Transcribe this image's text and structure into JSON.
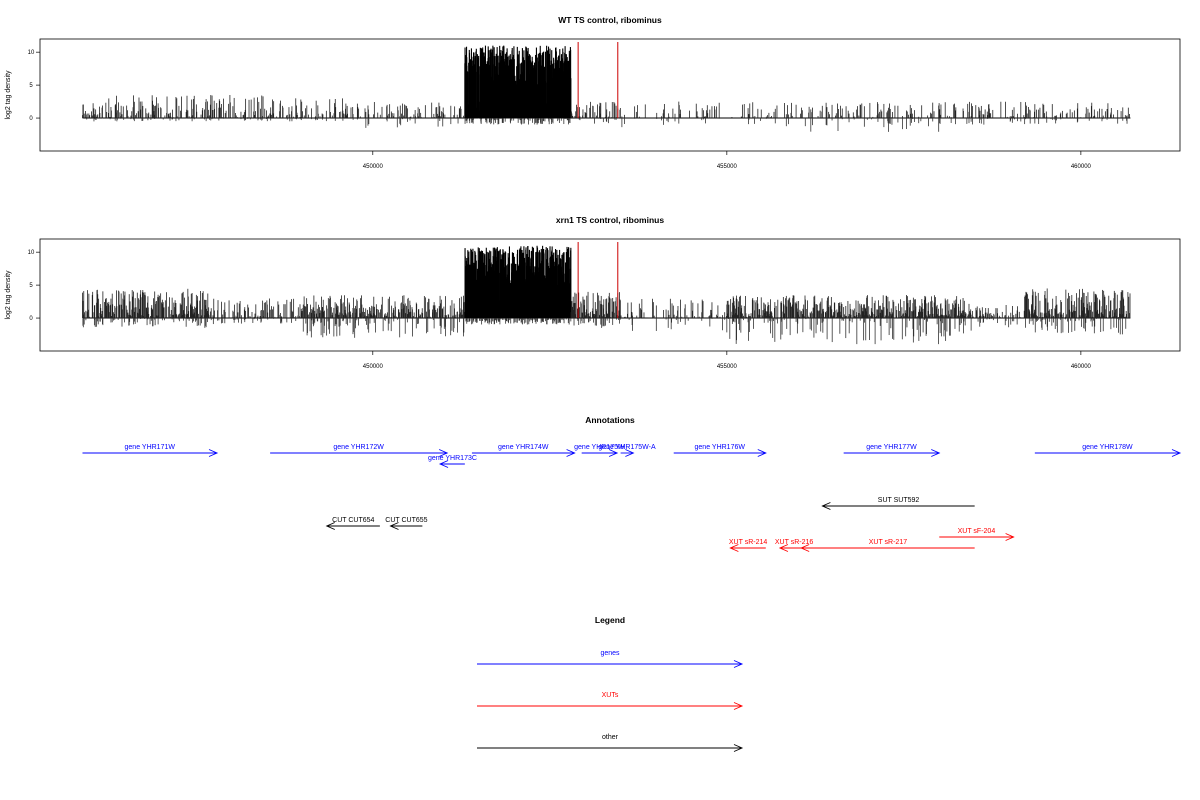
{
  "chart_data": [
    {
      "type": "bar",
      "title": "WT TS control, ribominus",
      "ylabel": "log2 tag density",
      "xlabel": "",
      "xlim": [
        445300,
        461400
      ],
      "ylim": [
        -5,
        12
      ],
      "data_range": [
        445900,
        460700
      ],
      "x_ticks": [
        "450000",
        "455000",
        "460000"
      ],
      "y_ticks": [
        "0",
        "5",
        "10"
      ],
      "baseline": 0,
      "markers": [
        {
          "x": 452900,
          "color": "#cc0000"
        },
        {
          "x": 453460,
          "color": "#cc0000"
        }
      ],
      "regions": [
        {
          "from": 445900,
          "to": 448600,
          "density": 0.45,
          "pos_max": 3.5,
          "neg_max": 0.5
        },
        {
          "from": 448600,
          "to": 449800,
          "density": 0.35,
          "pos_max": 3.0,
          "neg_max": 0.5
        },
        {
          "from": 449800,
          "to": 451300,
          "density": 0.3,
          "pos_max": 2.5,
          "neg_max": 1.5
        },
        {
          "from": 451300,
          "to": 452800,
          "density": 0.95,
          "pos_max": 11,
          "neg_max": 1.0,
          "bold": true
        },
        {
          "from": 452800,
          "to": 453500,
          "density": 0.55,
          "pos_max": 2.5,
          "neg_max": 1.0
        },
        {
          "from": 453500,
          "to": 456000,
          "density": 0.2,
          "pos_max": 2.5,
          "neg_max": 1.5
        },
        {
          "from": 456000,
          "to": 458000,
          "density": 0.25,
          "pos_max": 2.5,
          "neg_max": 2.5
        },
        {
          "from": 458000,
          "to": 460700,
          "density": 0.3,
          "pos_max": 2.5,
          "neg_max": 1.0
        }
      ]
    },
    {
      "type": "bar",
      "title": "xrn1 TS control, ribominus",
      "ylabel": "log2 tag density",
      "xlabel": "",
      "xlim": [
        445300,
        461400
      ],
      "ylim": [
        -5,
        12
      ],
      "data_range": [
        445900,
        460700
      ],
      "x_ticks": [
        "450000",
        "455000",
        "460000"
      ],
      "y_ticks": [
        "0",
        "5",
        "10"
      ],
      "baseline": 0,
      "markers": [
        {
          "x": 452900,
          "color": "#cc0000"
        },
        {
          "x": 453460,
          "color": "#cc0000"
        }
      ],
      "regions": [
        {
          "from": 445900,
          "to": 447700,
          "density": 0.75,
          "pos_max": 4.5,
          "neg_max": 1.5
        },
        {
          "from": 447700,
          "to": 449000,
          "density": 0.45,
          "pos_max": 3.0,
          "neg_max": 1.0
        },
        {
          "from": 449000,
          "to": 451300,
          "density": 0.7,
          "pos_max": 3.5,
          "neg_max": 3.0
        },
        {
          "from": 451300,
          "to": 452800,
          "density": 0.95,
          "pos_max": 11,
          "neg_max": 1.0,
          "bold": true
        },
        {
          "from": 452800,
          "to": 453500,
          "density": 0.85,
          "pos_max": 4.0,
          "neg_max": 1.5
        },
        {
          "from": 453500,
          "to": 455000,
          "density": 0.3,
          "pos_max": 3.0,
          "neg_max": 2.0
        },
        {
          "from": 455000,
          "to": 458500,
          "density": 0.8,
          "pos_max": 3.5,
          "neg_max": 4.0
        },
        {
          "from": 458500,
          "to": 459200,
          "density": 0.35,
          "pos_max": 2.0,
          "neg_max": 1.5
        },
        {
          "from": 459200,
          "to": 460700,
          "density": 0.85,
          "pos_max": 4.5,
          "neg_max": 2.5
        }
      ]
    }
  ],
  "annotations": {
    "title": "Annotations",
    "xlim": [
      445300,
      461400
    ],
    "items": [
      {
        "label": "gene YHR171W",
        "start": 445900,
        "end": 447800,
        "color": "#0000ff",
        "row": 0
      },
      {
        "label": "gene YHR172W",
        "start": 448550,
        "end": 451050,
        "color": "#0000ff",
        "row": 0
      },
      {
        "label": "gene YHR173C",
        "start": 451300,
        "end": 450950,
        "color": "#0000ff",
        "row": 1
      },
      {
        "label": "gene YHR174W",
        "start": 451400,
        "end": 452850,
        "color": "#0000ff",
        "row": 0
      },
      {
        "label": "gene YHR175W",
        "start": 452950,
        "end": 453450,
        "color": "#0000ff",
        "row": 0
      },
      {
        "label": "gene YHR175W-A",
        "start": 453500,
        "end": 453680,
        "color": "#0000ff",
        "row": 0
      },
      {
        "label": "gene YHR176W",
        "start": 454250,
        "end": 455550,
        "color": "#0000ff",
        "row": 0
      },
      {
        "label": "gene YHR177W",
        "start": 456650,
        "end": 458000,
        "color": "#0000ff",
        "row": 0
      },
      {
        "label": "gene YHR178W",
        "start": 459350,
        "end": 461400,
        "color": "#0000ff",
        "row": 0
      },
      {
        "label": "SUT SUT592",
        "start": 458500,
        "end": 456350,
        "color": "#000000",
        "row": 2
      },
      {
        "label": "CUT CUT654",
        "start": 450100,
        "end": 449350,
        "color": "#000000",
        "row": 3
      },
      {
        "label": "CUT CUT655",
        "start": 450700,
        "end": 450250,
        "color": "#000000",
        "row": 3
      },
      {
        "label": "XUT sF-204",
        "start": 458000,
        "end": 459050,
        "color": "#ff0000",
        "row": 4
      },
      {
        "label": "XUT sR-214",
        "start": 455550,
        "end": 455050,
        "color": "#ff0000",
        "row": 5
      },
      {
        "label": "XUT sR-216",
        "start": 456150,
        "end": 455750,
        "color": "#ff0000",
        "row": 5
      },
      {
        "label": "XUT sR-217",
        "start": 458500,
        "end": 456050,
        "color": "#ff0000",
        "row": 5
      }
    ]
  },
  "legend": {
    "title": "Legend",
    "items": [
      {
        "label": "genes",
        "color": "#0000ff"
      },
      {
        "label": "XUTs",
        "color": "#ff0000"
      },
      {
        "label": "other",
        "color": "#000000"
      }
    ]
  }
}
